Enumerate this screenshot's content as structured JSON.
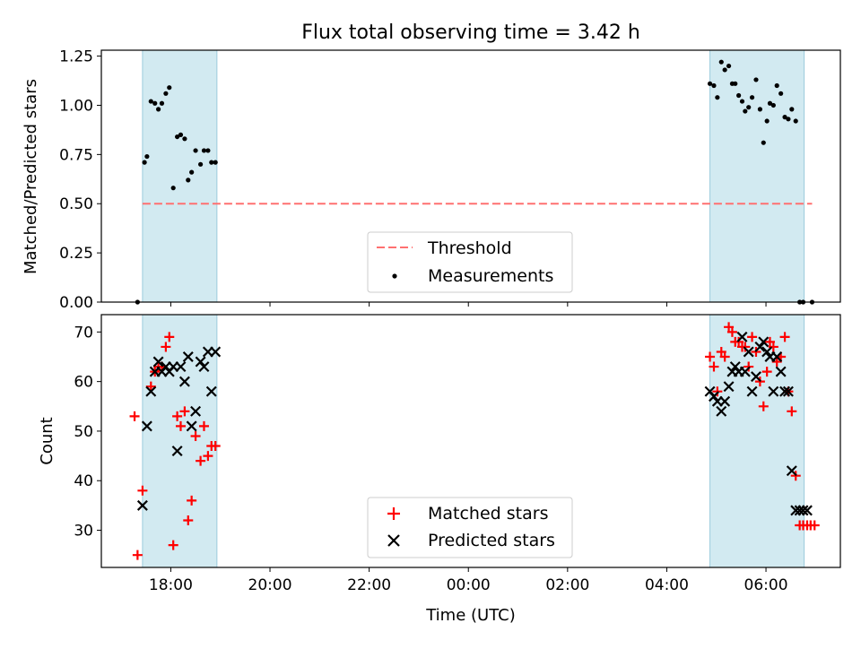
{
  "figure": {
    "title": "Flux total observing time = 3.42 h"
  },
  "chart_data": [
    {
      "type": "scatter",
      "ylabel": "Matched/Predicted stars",
      "ylim": [
        0.0,
        1.28
      ],
      "xlim": [
        16.6,
        31.5
      ],
      "yticks": [
        0.0,
        0.25,
        0.5,
        0.75,
        1.0,
        1.25
      ],
      "ytick_labels": [
        "0.00",
        "0.25",
        "0.50",
        "0.75",
        "1.00",
        "1.25"
      ],
      "x_ticklabels_visible": false,
      "shaded_intervals": [
        [
          17.43,
          18.93
        ],
        [
          28.87,
          30.77
        ]
      ],
      "shade_color": "#add8e6",
      "threshold": {
        "name": "Threshold",
        "value": 0.5,
        "x_range": [
          17.43,
          30.93
        ],
        "color": "#ff7070",
        "style": "dashed"
      },
      "legend": {
        "position": "lower center",
        "entries": [
          "Threshold",
          "Measurements"
        ]
      },
      "series": [
        {
          "name": "Measurements",
          "marker": "dot",
          "color": "#000000",
          "x": [
            17.33,
            17.47,
            17.52,
            17.6,
            17.68,
            17.75,
            17.82,
            17.9,
            17.97,
            18.05,
            18.13,
            18.2,
            18.28,
            18.35,
            18.42,
            18.5,
            18.6,
            18.67,
            18.75,
            18.82,
            18.9,
            28.87,
            28.95,
            29.02,
            29.1,
            29.17,
            29.25,
            29.32,
            29.38,
            29.45,
            29.52,
            29.58,
            29.65,
            29.72,
            29.8,
            29.88,
            29.95,
            30.02,
            30.08,
            30.15,
            30.22,
            30.3,
            30.38,
            30.45,
            30.52,
            30.6,
            30.68,
            30.75,
            30.93
          ],
          "y": [
            0.0,
            0.71,
            0.74,
            1.02,
            1.01,
            0.98,
            1.01,
            1.06,
            1.09,
            0.58,
            0.84,
            0.85,
            0.83,
            0.62,
            0.66,
            0.77,
            0.7,
            0.77,
            0.77,
            0.71,
            0.71,
            1.11,
            1.1,
            1.04,
            1.22,
            1.18,
            1.2,
            1.11,
            1.11,
            1.05,
            1.02,
            0.97,
            0.99,
            1.04,
            1.13,
            0.98,
            0.81,
            0.92,
            1.01,
            1.0,
            1.1,
            1.06,
            0.94,
            0.93,
            0.98,
            0.92,
            0.0,
            0.0,
            0.0
          ]
        }
      ]
    },
    {
      "type": "scatter",
      "ylabel": "Count",
      "xlabel": "Time (UTC)",
      "ylim": [
        22.5,
        73.5
      ],
      "xlim": [
        16.6,
        31.5
      ],
      "yticks": [
        30,
        40,
        50,
        60,
        70
      ],
      "ytick_labels": [
        "30",
        "40",
        "50",
        "60",
        "70"
      ],
      "xticks": [
        18,
        20,
        22,
        24,
        26,
        28,
        30
      ],
      "xtick_labels": [
        "18:00",
        "20:00",
        "22:00",
        "00:00",
        "02:00",
        "04:00",
        "06:00"
      ],
      "shaded_intervals": [
        [
          17.43,
          18.93
        ],
        [
          28.87,
          30.77
        ]
      ],
      "shade_color": "#add8e6",
      "legend": {
        "position": "lower center",
        "entries": [
          "Matched stars",
          "Predicted stars"
        ]
      },
      "series": [
        {
          "name": "Matched stars",
          "marker": "plus",
          "color": "#ff0000",
          "x": [
            17.27,
            17.33,
            17.43,
            17.6,
            17.68,
            17.75,
            17.82,
            17.9,
            17.97,
            18.05,
            18.13,
            18.2,
            18.28,
            18.35,
            18.42,
            18.5,
            18.6,
            18.67,
            18.75,
            18.82,
            18.9,
            28.87,
            28.95,
            29.02,
            29.1,
            29.17,
            29.25,
            29.32,
            29.38,
            29.45,
            29.52,
            29.58,
            29.65,
            29.72,
            29.8,
            29.88,
            29.95,
            30.02,
            30.08,
            30.15,
            30.22,
            30.3,
            30.38,
            30.45,
            30.52,
            30.6,
            30.68,
            30.75,
            30.83,
            30.9,
            30.98
          ],
          "y": [
            53,
            25,
            38,
            59,
            62,
            63,
            63,
            67,
            69,
            27,
            53,
            51,
            54,
            32,
            36,
            49,
            44,
            51,
            45,
            47,
            47,
            65,
            63,
            58,
            66,
            65,
            71,
            70,
            68,
            68,
            67,
            67,
            63,
            69,
            66,
            60,
            55,
            62,
            68,
            67,
            64,
            65,
            69,
            58,
            54,
            41,
            31,
            31,
            31,
            31,
            31
          ]
        },
        {
          "name": "Predicted stars",
          "marker": "x",
          "color": "#000000",
          "x": [
            17.43,
            17.52,
            17.6,
            17.68,
            17.75,
            17.82,
            17.9,
            17.97,
            18.05,
            18.13,
            18.2,
            18.28,
            18.35,
            18.42,
            18.5,
            18.6,
            18.67,
            18.75,
            18.82,
            18.9,
            28.87,
            28.95,
            29.02,
            29.1,
            29.17,
            29.25,
            29.32,
            29.38,
            29.45,
            29.52,
            29.58,
            29.65,
            29.72,
            29.8,
            29.88,
            29.95,
            30.02,
            30.08,
            30.15,
            30.22,
            30.3,
            30.38,
            30.45,
            30.52,
            30.6,
            30.68,
            30.75,
            30.83
          ],
          "y": [
            35,
            51,
            58,
            62,
            64,
            62,
            63,
            62,
            63,
            46,
            63,
            60,
            65,
            51,
            54,
            64,
            63,
            66,
            58,
            66,
            58,
            57,
            56,
            54,
            56,
            59,
            62,
            63,
            62,
            69,
            62,
            66,
            58,
            61,
            67,
            68,
            66,
            65,
            58,
            65,
            62,
            58,
            58,
            42,
            34,
            34,
            34,
            34
          ]
        }
      ]
    }
  ]
}
